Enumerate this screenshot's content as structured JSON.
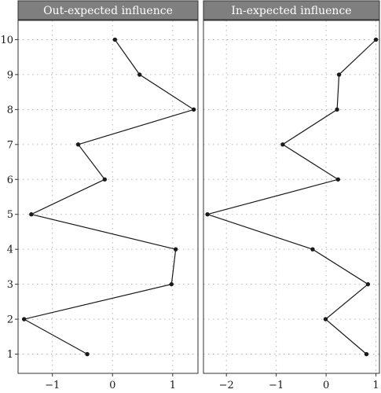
{
  "chart_data": [
    {
      "type": "line",
      "title": "Out-expected influence",
      "xlabel": "",
      "ylabel": "",
      "y": [
        1,
        2,
        3,
        4,
        5,
        6,
        7,
        8,
        9,
        10
      ],
      "x": [
        -0.42,
        -1.47,
        0.98,
        1.05,
        -1.35,
        -0.13,
        -0.57,
        1.35,
        0.45,
        0.04
      ],
      "xlim": [
        -1.57,
        1.42
      ],
      "xticks": [
        -1,
        0,
        1
      ],
      "yticks": [
        1,
        2,
        3,
        4,
        5,
        6,
        7,
        8,
        9,
        10
      ],
      "grid": true,
      "point_color": "#1a1a1a",
      "line_color": "#1a1a1a",
      "strip_color": "#7f7f7f"
    },
    {
      "type": "line",
      "title": "In-expected influence",
      "xlabel": "",
      "ylabel": "",
      "y": [
        1,
        2,
        3,
        4,
        5,
        6,
        7,
        8,
        9,
        10
      ],
      "x": [
        0.81,
        -0.01,
        0.84,
        -0.27,
        -2.38,
        0.24,
        -0.87,
        0.22,
        0.26,
        1.0
      ],
      "xlim": [
        -2.46,
        1.07
      ],
      "xticks": [
        -2,
        -1,
        0,
        1
      ],
      "yticks": [
        1,
        2,
        3,
        4,
        5,
        6,
        7,
        8,
        9,
        10
      ],
      "grid": true,
      "point_color": "#1a1a1a",
      "line_color": "#1a1a1a",
      "strip_color": "#7f7f7f"
    }
  ]
}
